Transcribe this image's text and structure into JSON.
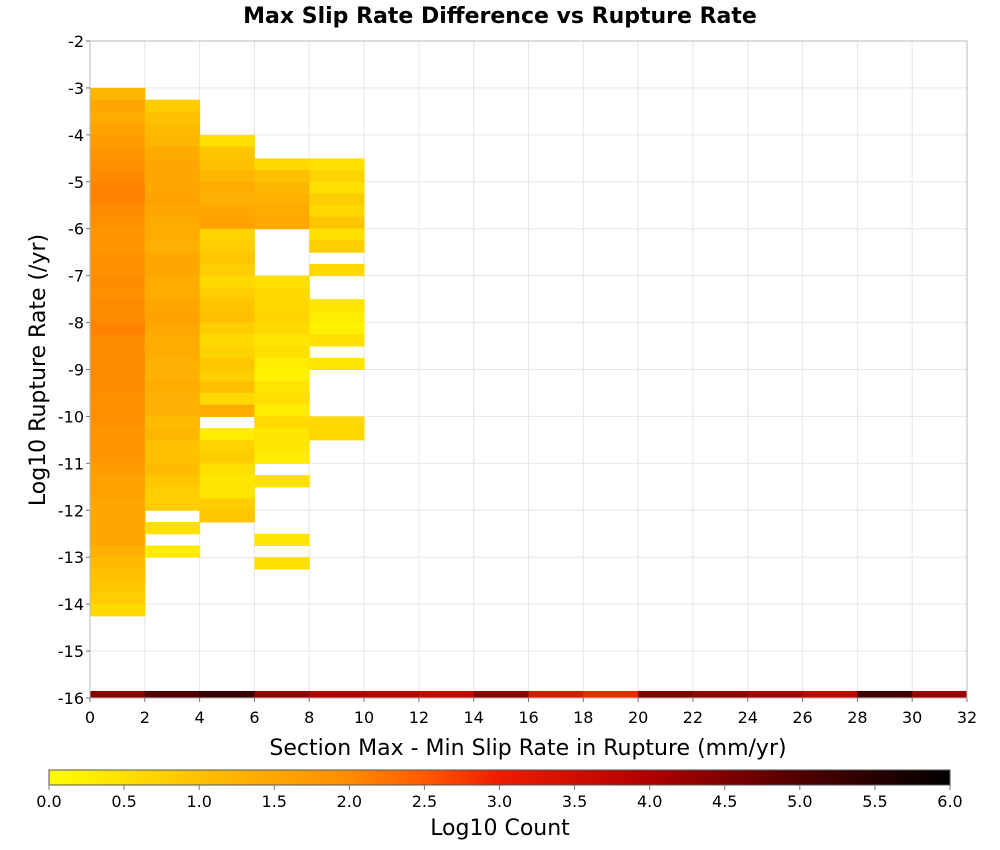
{
  "chart_data": {
    "type": "heatmap",
    "title": "Max Slip Rate Difference vs Rupture Rate",
    "xlabel": "Section Max - Min Slip Rate in Rupture (mm/yr)",
    "ylabel": "Log10 Rupture Rate (/yr)",
    "xlim": [
      0,
      32
    ],
    "ylim": [
      -16,
      -2
    ],
    "x_ticks": [
      "0",
      "2",
      "4",
      "6",
      "8",
      "10",
      "12",
      "14",
      "16",
      "18",
      "20",
      "22",
      "24",
      "26",
      "28",
      "30",
      "32"
    ],
    "y_ticks": [
      "-2",
      "-3",
      "-4",
      "-5",
      "-6",
      "-7",
      "-8",
      "-9",
      "-10",
      "-11",
      "-12",
      "-13",
      "-14",
      "-15",
      "-16"
    ],
    "x_bin_width": 2,
    "y_bin_height": 0.25,
    "grid": true,
    "colorbar": {
      "label": "Log10 Count",
      "min": 0.0,
      "max": 6.0,
      "ticks": [
        "0.0",
        "0.5",
        "1.0",
        "1.5",
        "2.0",
        "2.5",
        "3.0",
        "3.5",
        "4.0",
        "4.5",
        "5.0",
        "5.5",
        "6.0"
      ],
      "colors": [
        "#ffff00",
        "#ffc000",
        "#ff7000",
        "#e00000",
        "#600000",
        "#000000"
      ]
    },
    "columns": [
      {
        "x_start": 0,
        "top_empty": 4,
        "fill": [
          1.2,
          1.5,
          1.4,
          1.6,
          1.7,
          1.8,
          1.9,
          2.0,
          2.1,
          2.1,
          2.0,
          1.9,
          1.8,
          1.8,
          1.9,
          1.9,
          2.0,
          1.9,
          2.0,
          2.0,
          2.1,
          2.0,
          2.0,
          2.0,
          2.0,
          2.0,
          1.9,
          1.9,
          1.9,
          1.8,
          1.8,
          1.8,
          1.7,
          1.6,
          1.6,
          1.5,
          1.5,
          1.5,
          1.5,
          1.3,
          1.1,
          1.0,
          0.9,
          0.8,
          0.6
        ]
      },
      {
        "x_start": 2,
        "top_empty": 5,
        "fill": [
          0.8,
          1.0,
          1.1,
          1.2,
          1.4,
          1.5,
          1.5,
          1.5,
          1.6,
          1.5,
          1.4,
          1.4,
          1.3,
          1.5,
          1.5,
          1.4,
          1.4,
          1.5,
          1.6,
          1.5,
          1.4,
          1.4,
          1.3,
          1.3,
          1.4,
          1.3,
          1.3,
          1.1,
          1.2,
          1.0,
          1.0,
          1.1,
          0.9,
          0.8,
          0.8,
          null,
          0.5,
          null,
          0.3
        ]
      },
      {
        "x_start": 4,
        "top_empty": 8,
        "fill": [
          0.5,
          0.9,
          1.0,
          1.2,
          1.4,
          1.3,
          1.5,
          1.6,
          0.7,
          0.8,
          0.9,
          0.8,
          0.6,
          0.8,
          0.9,
          1.0,
          0.8,
          0.6,
          0.7,
          0.9,
          0.8,
          1.0,
          0.6,
          1.4,
          null,
          0.3,
          0.7,
          0.8,
          0.5,
          0.4,
          0.4,
          0.8,
          0.9
        ]
      },
      {
        "x_start": 6,
        "top_empty": 10,
        "fill": [
          0.6,
          1.0,
          1.2,
          1.3,
          1.4,
          1.5,
          null,
          null,
          null,
          null,
          0.5,
          0.6,
          0.6,
          0.7,
          0.6,
          0.4,
          0.5,
          0.3,
          0.2,
          0.4,
          0.5,
          0.3,
          0.6,
          0.4,
          0.4,
          0.3,
          null,
          0.5,
          null,
          null,
          null,
          null,
          0.4,
          null,
          0.5
        ]
      },
      {
        "x_start": 8,
        "top_empty": 10,
        "fill": [
          0.5,
          0.7,
          0.5,
          0.8,
          0.6,
          0.9,
          0.5,
          0.8,
          null,
          0.6,
          null,
          null,
          0.4,
          0.3,
          0.2,
          0.5,
          null,
          0.4,
          null,
          null,
          null,
          null,
          0.6,
          0.6
        ]
      }
    ],
    "bottom_row_y": -16,
    "bottom_row_values": [
      4.4,
      5.0,
      5.3,
      4.3,
      4.0,
      3.9,
      3.7,
      4.4,
      3.2,
      2.9,
      4.5,
      4.3,
      4.1,
      3.8,
      5.2,
      4.2
    ]
  }
}
